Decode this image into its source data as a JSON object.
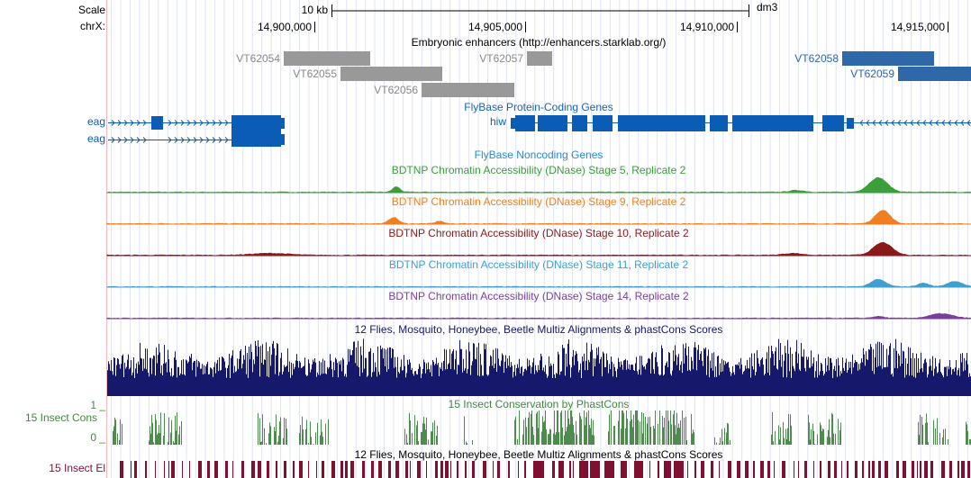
{
  "scale": {
    "label": "Scale",
    "size": "10 kb",
    "assembly": "dm3"
  },
  "ruler": {
    "chrom": "chrX:",
    "positions": [
      "14,900,000",
      "14,905,000",
      "14,910,000",
      "14,915,000"
    ]
  },
  "enhancers": {
    "title": "Embryonic enhancers (http://enhancers.starklab.org/)",
    "items": [
      "VT62054",
      "VT62055",
      "VT62056",
      "VT62057",
      "VT62058",
      "VT62059"
    ]
  },
  "coding_genes": {
    "title": "FlyBase Protein-Coding Genes",
    "genes": [
      "eag",
      "eag",
      "hiw"
    ]
  },
  "noncoding_genes": {
    "title": "FlyBase Noncoding Genes"
  },
  "dnase_tracks": [
    "BDTNP Chromatin Accessibility (DNase) Stage 5, Replicate 2",
    "BDTNP Chromatin Accessibility (DNase) Stage 9, Replicate 2",
    "BDTNP Chromatin Accessibility (DNase) Stage 10, Replicate 2",
    "BDTNP Chromatin Accessibility (DNase) Stage 11, Replicate 2",
    "BDTNP Chromatin Accessibility (DNase) Stage 14, Replicate 2"
  ],
  "multiz": {
    "title": "12 Flies, Mosquito, Honeybee, Beetle Multiz Alignments & phastCons Scores"
  },
  "phastcons": {
    "title": "15 Insect Conservation by PhastCons",
    "label": "15 Insect Cons",
    "max": "1 _",
    "min": "0 _"
  },
  "elements": {
    "title": "12 Flies, Mosquito, Honeybee, Beetle Multiz Alignments & phastCons Scores",
    "label": "15 Insect El"
  }
}
